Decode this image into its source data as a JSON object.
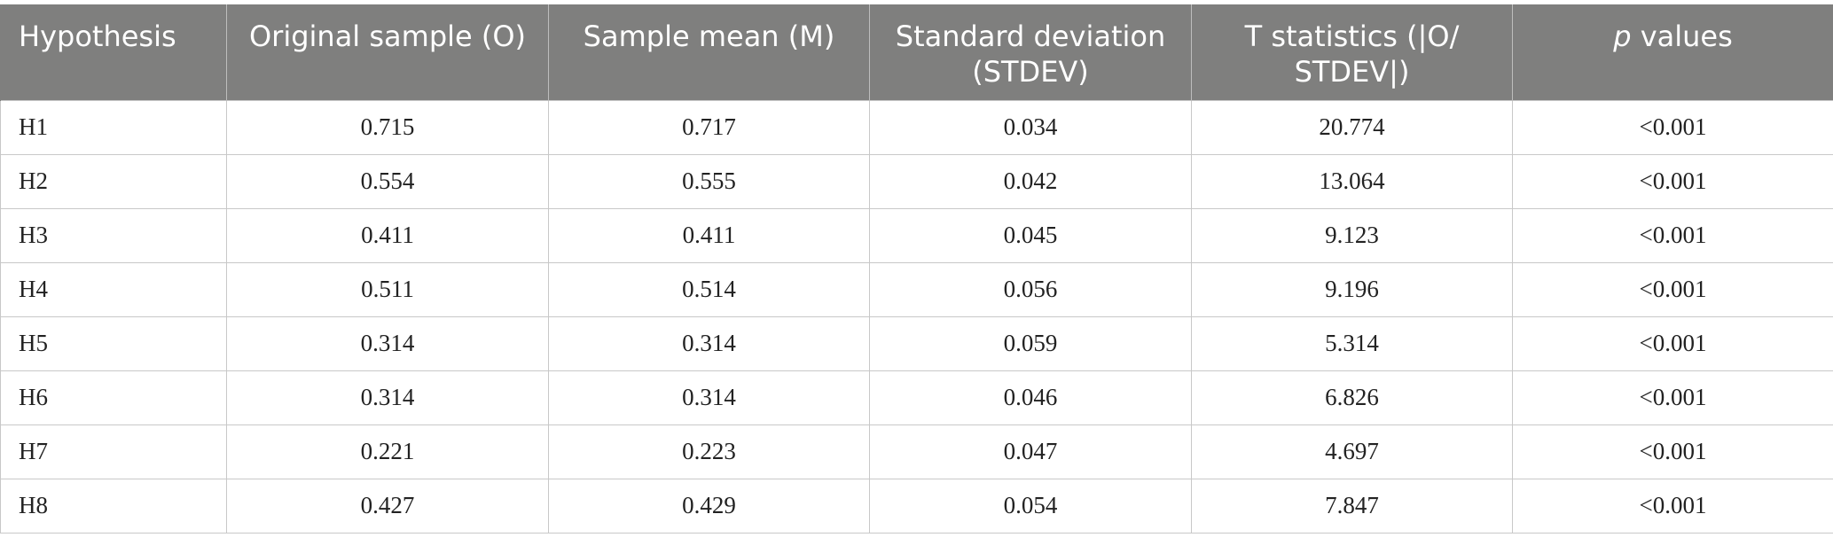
{
  "table": {
    "headers": [
      "Hypothesis",
      "Original sample (O)",
      "Sample mean (M)",
      "Standard deviation (STDEV)",
      "T statistics (|O/ STDEV|)",
      "values"
    ],
    "p_prefix": "p",
    "rows": [
      [
        "H1",
        "0.715",
        "0.717",
        "0.034",
        "20.774",
        "<0.001"
      ],
      [
        "H2",
        "0.554",
        "0.555",
        "0.042",
        "13.064",
        "<0.001"
      ],
      [
        "H3",
        "0.411",
        "0.411",
        "0.045",
        "9.123",
        "<0.001"
      ],
      [
        "H4",
        "0.511",
        "0.514",
        "0.056",
        "9.196",
        "<0.001"
      ],
      [
        "H5",
        "0.314",
        "0.314",
        "0.059",
        "5.314",
        "<0.001"
      ],
      [
        "H6",
        "0.314",
        "0.314",
        "0.046",
        "6.826",
        "<0.001"
      ],
      [
        "H7",
        "0.221",
        "0.223",
        "0.047",
        "4.697",
        "<0.001"
      ],
      [
        "H8",
        "0.427",
        "0.429",
        "0.054",
        "7.847",
        "<0.001"
      ]
    ]
  },
  "colors": {
    "header_bg": "#7f7f7e",
    "header_text": "#ffffff",
    "grid": "#c8c8c8"
  }
}
